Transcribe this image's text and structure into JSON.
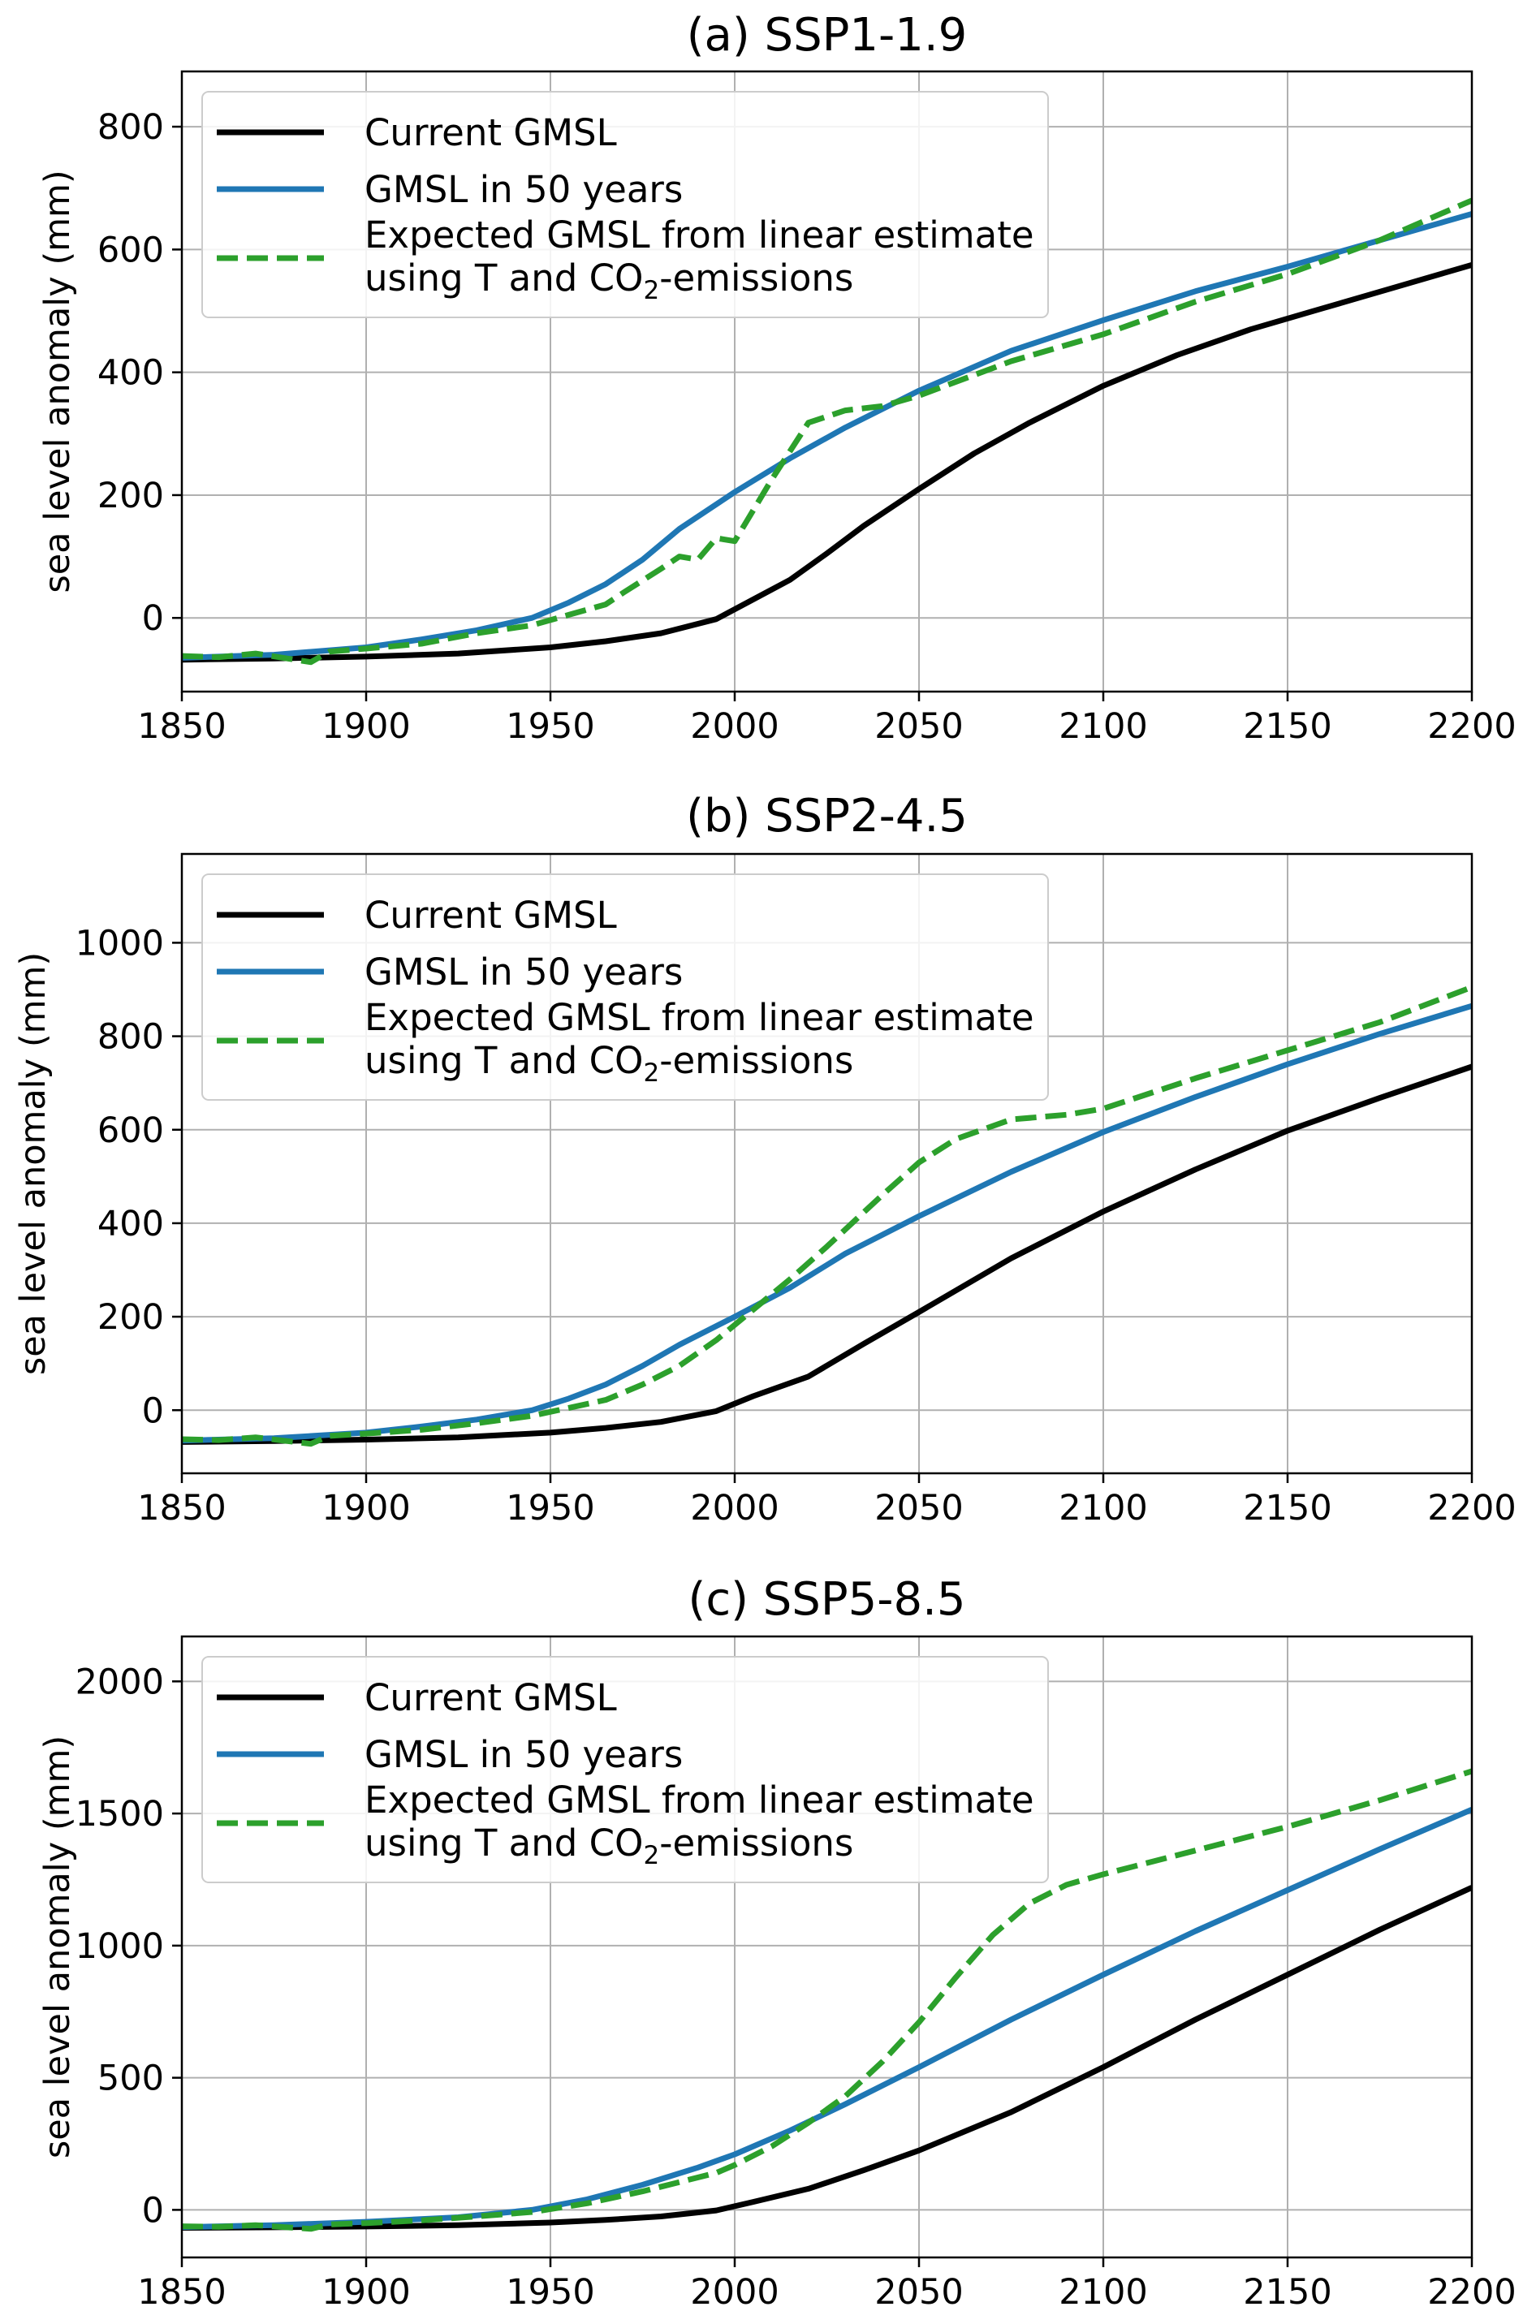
{
  "chart_data": [
    {
      "type": "line",
      "title": "(a) SSP1-1.9",
      "xlabel": "",
      "ylabel": "sea level anomaly (mm)",
      "xlim": [
        1850,
        2200
      ],
      "ylim": [
        -120,
        890
      ],
      "xticks": [
        1850,
        1900,
        1950,
        2000,
        2050,
        2100,
        2150,
        2200
      ],
      "yticks": [
        0,
        200,
        400,
        600,
        800
      ],
      "grid": true,
      "legend_position": "top-left",
      "legend": [
        {
          "label": "Current GMSL",
          "color": "#000000",
          "style": "solid"
        },
        {
          "label": "GMSL in 50 years",
          "color": "#1f77b4",
          "style": "solid"
        },
        {
          "label_line1": "Expected GMSL from linear estimate",
          "label_line2_prefix": "using T and CO",
          "label_line2_subscript": "2",
          "label_line2_suffix": "-emissions",
          "color": "#2ca02c",
          "style": "dashed"
        }
      ],
      "series": [
        {
          "name": "Current GMSL",
          "color": "#000000",
          "dash": false,
          "x": [
            1850,
            1875,
            1900,
            1925,
            1950,
            1965,
            1980,
            1995,
            2005,
            2015,
            2025,
            2035,
            2050,
            2065,
            2080,
            2100,
            2120,
            2140,
            2160,
            2180,
            2200
          ],
          "y": [
            -68,
            -66,
            -63,
            -58,
            -48,
            -38,
            -25,
            -2,
            30,
            62,
            105,
            150,
            210,
            268,
            318,
            378,
            428,
            470,
            505,
            540,
            575
          ]
        },
        {
          "name": "GMSL in 50 years",
          "color": "#1f77b4",
          "dash": false,
          "x": [
            1850,
            1875,
            1900,
            1915,
            1930,
            1945,
            1955,
            1965,
            1975,
            1985,
            2000,
            2015,
            2030,
            2050,
            2075,
            2100,
            2125,
            2150,
            2175,
            2200
          ],
          "y": [
            -65,
            -60,
            -48,
            -35,
            -20,
            0,
            25,
            55,
            95,
            145,
            205,
            260,
            310,
            370,
            435,
            485,
            532,
            572,
            615,
            658
          ]
        },
        {
          "name": "Expected GMSL from linear estimate using T and CO2-emissions",
          "color": "#2ca02c",
          "dash": true,
          "x": [
            1850,
            1860,
            1870,
            1885,
            1890,
            1900,
            1915,
            1930,
            1945,
            1955,
            1965,
            1970,
            1980,
            1985,
            1990,
            1995,
            2000,
            2010,
            2020,
            2030,
            2040,
            2050,
            2075,
            2100,
            2125,
            2150,
            2175,
            2200
          ],
          "y": [
            -62,
            -64,
            -58,
            -72,
            -55,
            -50,
            -42,
            -25,
            -12,
            5,
            22,
            42,
            80,
            100,
            95,
            130,
            125,
            225,
            318,
            338,
            345,
            362,
            418,
            462,
            515,
            560,
            615,
            680
          ]
        }
      ]
    },
    {
      "type": "line",
      "title": "(b) SSP2-4.5",
      "xlabel": "",
      "ylabel": "sea level anomaly (mm)",
      "xlim": [
        1850,
        2200
      ],
      "ylim": [
        -135,
        1190
      ],
      "xticks": [
        1850,
        1900,
        1950,
        2000,
        2050,
        2100,
        2150,
        2200
      ],
      "yticks": [
        0,
        200,
        400,
        600,
        800,
        1000
      ],
      "grid": true,
      "legend_position": "top-left",
      "legend": [
        {
          "label": "Current GMSL",
          "color": "#000000",
          "style": "solid"
        },
        {
          "label": "GMSL in 50 years",
          "color": "#1f77b4",
          "style": "solid"
        },
        {
          "label_line1": "Expected GMSL from linear estimate",
          "label_line2_prefix": "using T and CO",
          "label_line2_subscript": "2",
          "label_line2_suffix": "-emissions",
          "color": "#2ca02c",
          "style": "dashed"
        }
      ],
      "series": [
        {
          "name": "Current GMSL",
          "color": "#000000",
          "dash": false,
          "x": [
            1850,
            1875,
            1900,
            1925,
            1950,
            1965,
            1980,
            1995,
            2005,
            2020,
            2035,
            2050,
            2075,
            2100,
            2125,
            2150,
            2175,
            2200
          ],
          "y": [
            -68,
            -66,
            -63,
            -58,
            -48,
            -38,
            -25,
            -2,
            30,
            72,
            142,
            210,
            325,
            425,
            515,
            598,
            668,
            735
          ]
        },
        {
          "name": "GMSL in 50 years",
          "color": "#1f77b4",
          "dash": false,
          "x": [
            1850,
            1875,
            1900,
            1915,
            1930,
            1945,
            1955,
            1965,
            1975,
            1985,
            2000,
            2015,
            2030,
            2050,
            2075,
            2100,
            2125,
            2150,
            2175,
            2200
          ],
          "y": [
            -65,
            -60,
            -48,
            -35,
            -20,
            0,
            25,
            55,
            95,
            140,
            200,
            262,
            335,
            415,
            510,
            595,
            670,
            740,
            805,
            865
          ]
        },
        {
          "name": "Expected GMSL from linear estimate using T and CO2-emissions",
          "color": "#2ca02c",
          "dash": true,
          "x": [
            1850,
            1860,
            1870,
            1885,
            1890,
            1900,
            1915,
            1930,
            1945,
            1955,
            1965,
            1975,
            1985,
            1995,
            2005,
            2015,
            2025,
            2040,
            2050,
            2060,
            2075,
            2090,
            2100,
            2125,
            2150,
            2175,
            2200
          ],
          "y": [
            -62,
            -64,
            -58,
            -72,
            -55,
            -50,
            -42,
            -28,
            -12,
            5,
            22,
            55,
            95,
            150,
            215,
            280,
            350,
            460,
            530,
            580,
            622,
            632,
            645,
            710,
            770,
            830,
            905
          ]
        }
      ]
    },
    {
      "type": "line",
      "title": "(c) SSP5-8.5",
      "xlabel": "",
      "ylabel": "sea level anomaly (mm)",
      "xlim": [
        1850,
        2200
      ],
      "ylim": [
        -180,
        2170
      ],
      "xticks": [
        1850,
        1900,
        1950,
        2000,
        2050,
        2100,
        2150,
        2200
      ],
      "yticks": [
        0,
        500,
        1000,
        1500,
        2000
      ],
      "grid": true,
      "legend_position": "top-left",
      "legend": [
        {
          "label": "Current GMSL",
          "color": "#000000",
          "style": "solid"
        },
        {
          "label": "GMSL in 50 years",
          "color": "#1f77b4",
          "style": "solid"
        },
        {
          "label_line1": "Expected GMSL from linear estimate",
          "label_line2_prefix": "using T and CO",
          "label_line2_subscript": "2",
          "label_line2_suffix": "-emissions",
          "color": "#2ca02c",
          "style": "dashed"
        }
      ],
      "series": [
        {
          "name": "Current GMSL",
          "color": "#000000",
          "dash": false,
          "x": [
            1850,
            1875,
            1900,
            1925,
            1950,
            1965,
            1980,
            1995,
            2005,
            2020,
            2035,
            2050,
            2075,
            2100,
            2125,
            2150,
            2175,
            2200
          ],
          "y": [
            -68,
            -66,
            -63,
            -58,
            -48,
            -38,
            -25,
            -2,
            30,
            80,
            150,
            225,
            370,
            540,
            720,
            890,
            1060,
            1220
          ]
        },
        {
          "name": "GMSL in 50 years",
          "color": "#1f77b4",
          "dash": false,
          "x": [
            1850,
            1875,
            1900,
            1925,
            1945,
            1960,
            1975,
            1990,
            2000,
            2015,
            2030,
            2050,
            2075,
            2100,
            2125,
            2150,
            2175,
            2200
          ],
          "y": [
            -65,
            -58,
            -45,
            -28,
            0,
            40,
            95,
            160,
            210,
            300,
            400,
            540,
            720,
            890,
            1055,
            1210,
            1365,
            1515
          ]
        },
        {
          "name": "Expected GMSL from linear estimate using T and CO2-emissions",
          "color": "#2ca02c",
          "dash": true,
          "x": [
            1850,
            1860,
            1870,
            1885,
            1890,
            1900,
            1915,
            1930,
            1945,
            1960,
            1975,
            1985,
            1995,
            2000,
            2010,
            2020,
            2030,
            2040,
            2050,
            2060,
            2070,
            2080,
            2090,
            2100,
            2125,
            2150,
            2175,
            2200
          ],
          "y": [
            -62,
            -64,
            -58,
            -72,
            -55,
            -50,
            -40,
            -25,
            -8,
            25,
            70,
            105,
            140,
            170,
            240,
            330,
            430,
            560,
            710,
            880,
            1040,
            1160,
            1230,
            1270,
            1360,
            1450,
            1550,
            1660
          ]
        }
      ]
    }
  ]
}
